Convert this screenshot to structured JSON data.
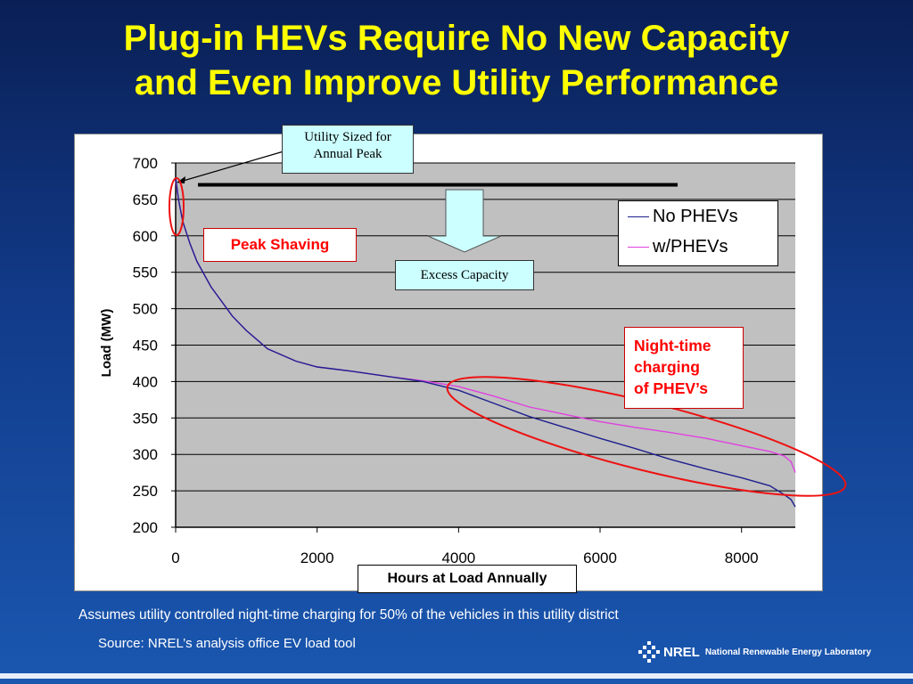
{
  "title": {
    "line1": "Plug-in HEVs Require No New Capacity",
    "line2": "and Even Improve Utility Performance"
  },
  "annotations": {
    "utility_sized": "Utility Sized for\nAnnual Peak",
    "utility_sized_line1": "Utility Sized for",
    "utility_sized_line2": "Annual Peak",
    "excess_capacity": "Excess Capacity",
    "peak_shaving": "Peak Shaving",
    "night_time_line1": "Night-time",
    "night_time_line2": "charging",
    "night_time_line3": "of PHEV’s"
  },
  "footer": {
    "note": "Assumes utility controlled night-time charging for 50% of the vehicles in this utility district",
    "source": "Source: NREL’s analysis office EV load tool",
    "logo_text": "NREL",
    "lab_name": "National Renewable Energy Laboratory"
  },
  "colors": {
    "title": "#ffff00",
    "plot_bg": "#c0c0c0",
    "no_phev": "#1f1f8f",
    "w_phev": "#e040e0",
    "highlight": "#ee1111",
    "callout_bg": "#ccffff"
  },
  "chart_data": {
    "type": "line",
    "xlabel": "Hours at Load Annually",
    "ylabel": "Load (MW)",
    "xlim": [
      0,
      8760
    ],
    "ylim": [
      200,
      700
    ],
    "x_ticks": [
      "0",
      "2000",
      "4000",
      "6000",
      "8000"
    ],
    "y_ticks": [
      "700",
      "650",
      "600",
      "550",
      "500",
      "450",
      "400",
      "350",
      "300",
      "250",
      "200"
    ],
    "grid": "horizontal",
    "legend_position": "top-right",
    "capacity_line": 670,
    "series": [
      {
        "name": "No PHEVs",
        "color": "#1f1f8f",
        "points": [
          [
            0,
            680
          ],
          [
            40,
            650
          ],
          [
            100,
            620
          ],
          [
            200,
            590
          ],
          [
            300,
            565
          ],
          [
            500,
            530
          ],
          [
            800,
            490
          ],
          [
            1000,
            470
          ],
          [
            1300,
            445
          ],
          [
            1700,
            428
          ],
          [
            2000,
            420
          ],
          [
            2500,
            414
          ],
          [
            3000,
            407
          ],
          [
            3500,
            400
          ],
          [
            4000,
            388
          ],
          [
            4500,
            370
          ],
          [
            5000,
            352
          ],
          [
            5500,
            337
          ],
          [
            6000,
            322
          ],
          [
            6500,
            308
          ],
          [
            7000,
            293
          ],
          [
            7500,
            280
          ],
          [
            8000,
            268
          ],
          [
            8400,
            257
          ],
          [
            8600,
            245
          ],
          [
            8700,
            238
          ],
          [
            8760,
            228
          ]
        ]
      },
      {
        "name": "w/PHEVs",
        "color": "#e040e0",
        "points": [
          [
            0,
            675
          ],
          [
            40,
            650
          ],
          [
            100,
            620
          ],
          [
            200,
            590
          ],
          [
            300,
            565
          ],
          [
            500,
            530
          ],
          [
            800,
            490
          ],
          [
            1000,
            470
          ],
          [
            1300,
            445
          ],
          [
            1700,
            428
          ],
          [
            2000,
            420
          ],
          [
            2500,
            414
          ],
          [
            3000,
            407
          ],
          [
            3500,
            401
          ],
          [
            4000,
            393
          ],
          [
            4500,
            380
          ],
          [
            5000,
            365
          ],
          [
            5500,
            355
          ],
          [
            6000,
            345
          ],
          [
            6500,
            337
          ],
          [
            7000,
            330
          ],
          [
            7500,
            322
          ],
          [
            8000,
            312
          ],
          [
            8400,
            304
          ],
          [
            8600,
            298
          ],
          [
            8700,
            290
          ],
          [
            8760,
            275
          ]
        ]
      }
    ]
  }
}
